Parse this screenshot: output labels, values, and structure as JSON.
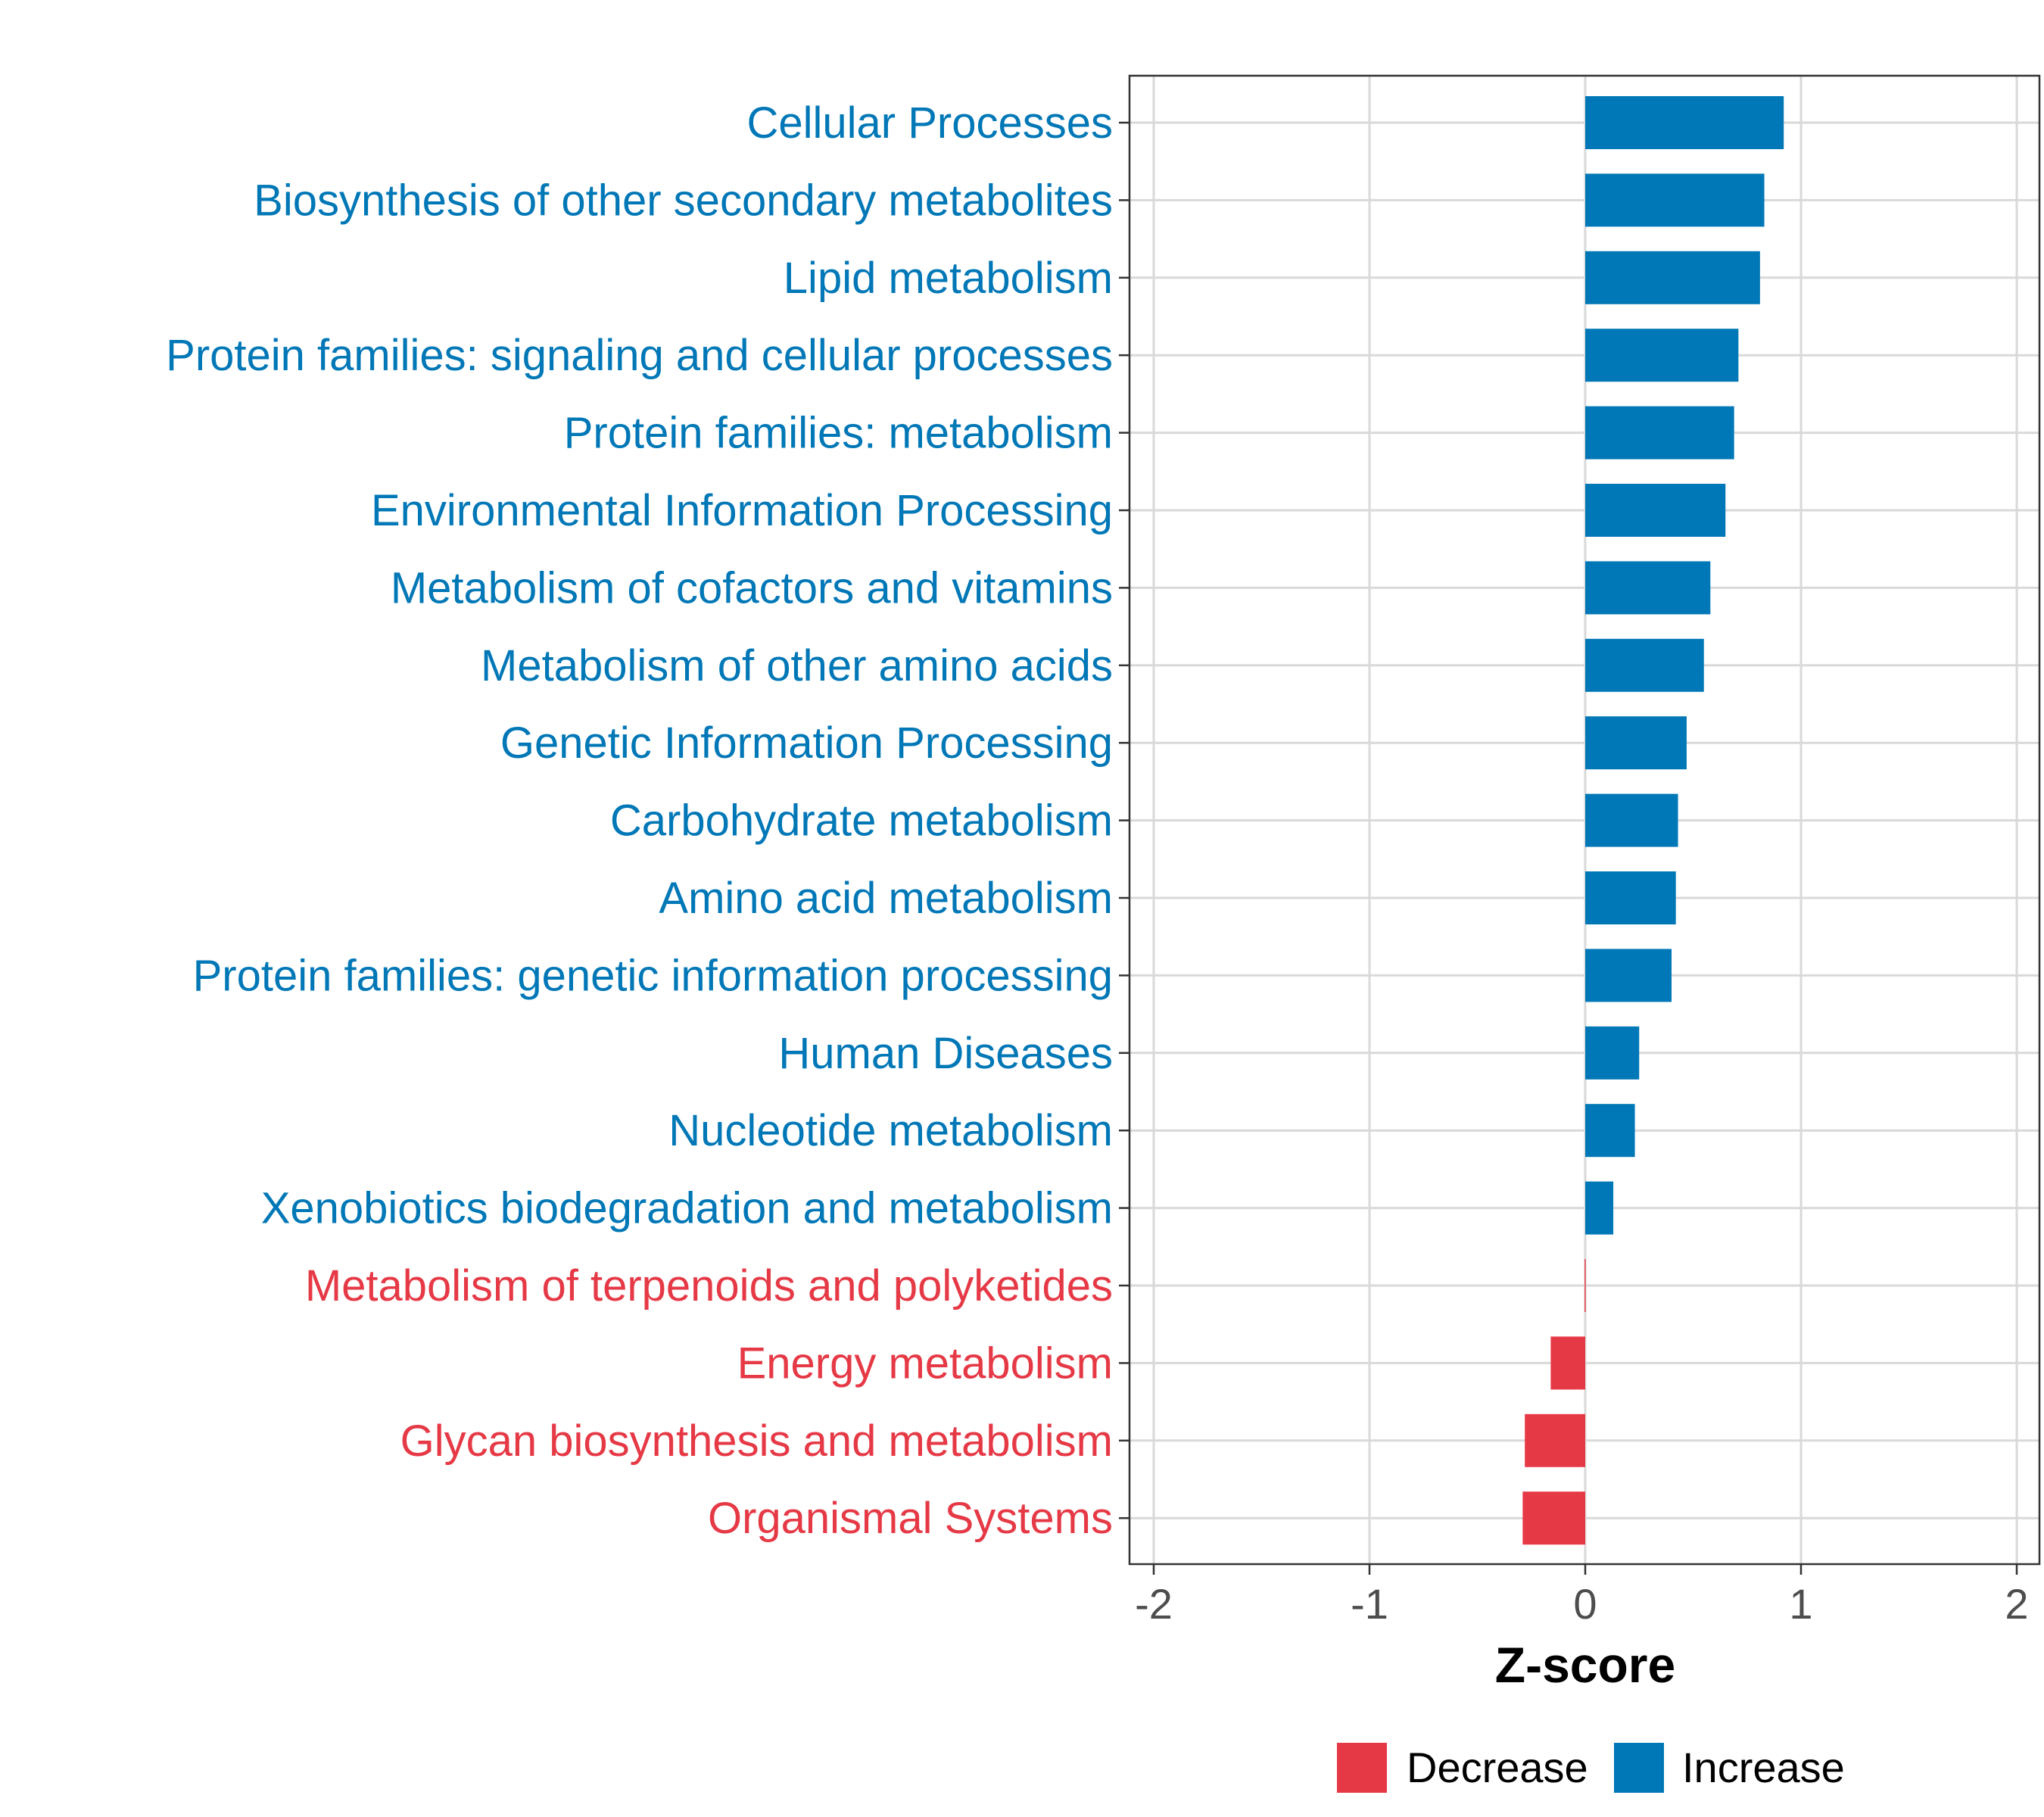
{
  "chart_data": {
    "type": "bar",
    "orientation": "horizontal",
    "title": "",
    "xlabel": "Z-score",
    "ylabel": "",
    "xlim": [
      -2,
      2
    ],
    "xticks": [
      "-2",
      "-1",
      "0",
      "1",
      "2"
    ],
    "grid": true,
    "legend_position": "bottom",
    "legend": [
      {
        "label": "Decrease",
        "color": "#e63946"
      },
      {
        "label": "Increase",
        "color": "#0077b6"
      }
    ],
    "categories": [
      {
        "label": "Cellular Processes",
        "value": 0.92,
        "group": "Increase"
      },
      {
        "label": "Biosynthesis of other secondary metabolites",
        "value": 0.83,
        "group": "Increase"
      },
      {
        "label": "Lipid metabolism",
        "value": 0.81,
        "group": "Increase"
      },
      {
        "label": "Protein families: signaling and cellular processes",
        "value": 0.71,
        "group": "Increase"
      },
      {
        "label": "Protein families: metabolism",
        "value": 0.69,
        "group": "Increase"
      },
      {
        "label": "Environmental Information Processing",
        "value": 0.65,
        "group": "Increase"
      },
      {
        "label": "Metabolism of cofactors and vitamins",
        "value": 0.58,
        "group": "Increase"
      },
      {
        "label": "Metabolism of other amino acids",
        "value": 0.55,
        "group": "Increase"
      },
      {
        "label": "Genetic Information Processing",
        "value": 0.47,
        "group": "Increase"
      },
      {
        "label": "Carbohydrate metabolism",
        "value": 0.43,
        "group": "Increase"
      },
      {
        "label": "Amino acid metabolism",
        "value": 0.42,
        "group": "Increase"
      },
      {
        "label": "Protein families: genetic information processing",
        "value": 0.4,
        "group": "Increase"
      },
      {
        "label": "Human Diseases",
        "value": 0.25,
        "group": "Increase"
      },
      {
        "label": "Nucleotide metabolism",
        "value": 0.23,
        "group": "Increase"
      },
      {
        "label": "Xenobiotics biodegradation and metabolism",
        "value": 0.13,
        "group": "Increase"
      },
      {
        "label": "Metabolism of terpenoids and polyketides",
        "value": -0.003,
        "group": "Decrease"
      },
      {
        "label": "Energy metabolism",
        "value": -0.16,
        "group": "Decrease"
      },
      {
        "label": "Glycan biosynthesis and metabolism",
        "value": -0.28,
        "group": "Decrease"
      },
      {
        "label": "Organismal Systems",
        "value": -0.29,
        "group": "Decrease"
      }
    ]
  }
}
